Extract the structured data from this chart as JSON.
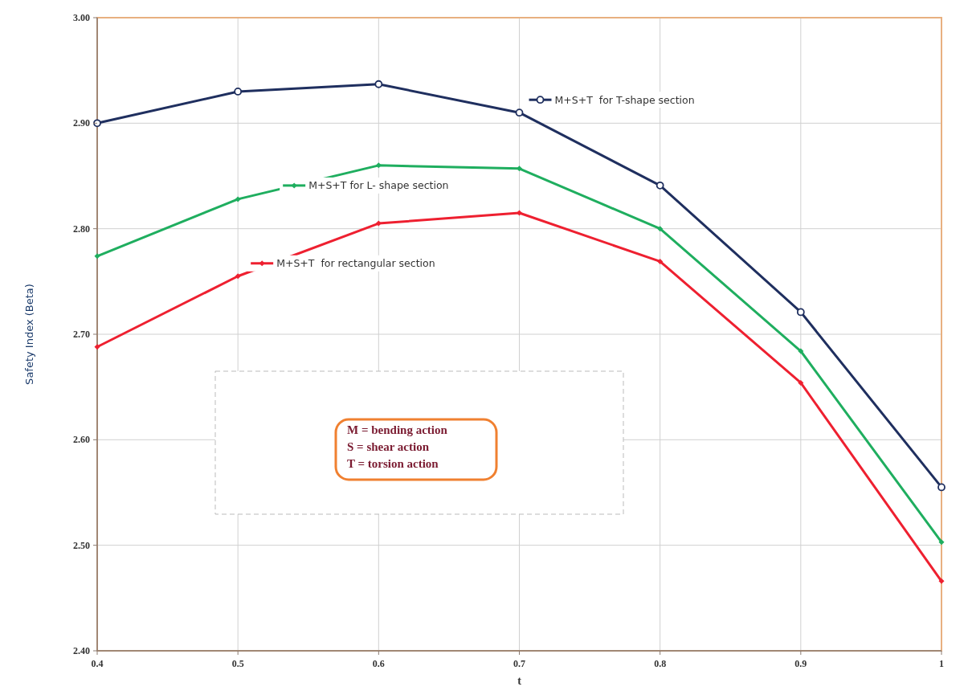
{
  "chart_data": {
    "type": "line",
    "xlabel": "t",
    "ylabel": "Safety Index (Beta)",
    "x": [
      0.4,
      0.5,
      0.6,
      0.7,
      0.8,
      0.9,
      1
    ],
    "series": [
      {
        "name": "M+S+T  for T-shape section",
        "color": "#1f2f5f",
        "marker": "circle",
        "values": [
          2.9,
          2.93,
          2.937,
          2.91,
          2.841,
          2.721,
          2.555
        ]
      },
      {
        "name": "M+S+T for L- shape section",
        "color": "#1fae5f",
        "marker": "diamond",
        "values": [
          2.774,
          2.828,
          2.86,
          2.857,
          2.8,
          2.684,
          2.503
        ]
      },
      {
        "name": "M+S+T  for rectangular section",
        "color": "#ee2030",
        "marker": "diamond",
        "values": [
          2.688,
          2.755,
          2.805,
          2.815,
          2.769,
          2.654,
          2.466
        ]
      }
    ],
    "xlim": [
      0.4,
      1
    ],
    "xticks": [
      0.4,
      0.5,
      0.6,
      0.7,
      0.8,
      0.9,
      1
    ],
    "ylim": [
      2.4,
      3.0
    ],
    "yticks": [
      {
        "value": 2.4,
        "label": "2.40"
      },
      {
        "value": 2.5,
        "label": "2.50"
      },
      {
        "value": 2.6,
        "label": "2.60"
      },
      {
        "value": 2.7,
        "label": "2.70"
      },
      {
        "value": 2.8,
        "label": "2.80"
      },
      {
        "value": 2.9,
        "label": "2.90"
      },
      {
        "value": 3.0,
        "label": "3.00"
      }
    ],
    "grid": true,
    "line_style": "solid",
    "legend": "top",
    "annotations": [
      "M = bending action",
      "S = shear action",
      "T = torsion action"
    ]
  }
}
